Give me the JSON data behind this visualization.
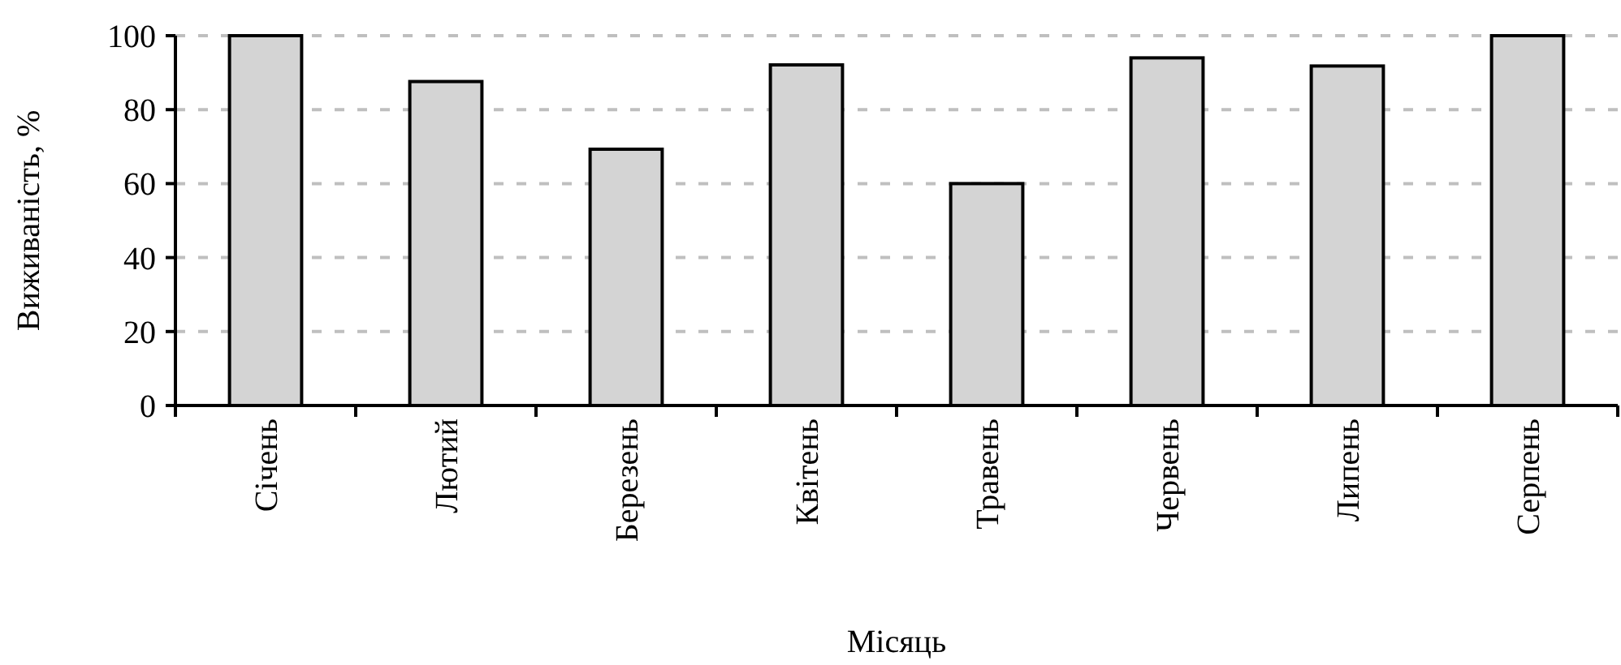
{
  "chart_data": {
    "type": "bar",
    "xlabel": "Місяць",
    "ylabel": "Виживаність, %",
    "categories": [
      "Січень",
      "Лютий",
      "Березень",
      "Квітень",
      "Травень",
      "Червень",
      "Липень",
      "Серпень"
    ],
    "values": [
      100,
      87.6,
      69.3,
      92.1,
      60,
      94,
      91.8,
      100
    ],
    "color": "#d4d4d4",
    "ylim": [
      0,
      100
    ],
    "yticks": [
      0,
      20,
      40,
      60,
      80,
      100
    ],
    "grid": "y"
  }
}
